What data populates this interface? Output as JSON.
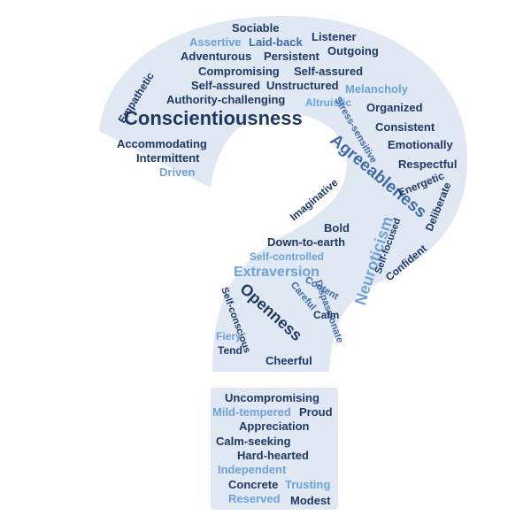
{
  "palette": {
    "background": "#ffffff",
    "shape_fill": "#dfe8f3",
    "dark_blue": "#1f3864",
    "mid_blue": "#3e6aa8",
    "light_blue": "#6fa2d6",
    "faint_blue": "#9fb6d3"
  },
  "words": {
    "sociable": "Sociable",
    "assertive": "Assertive",
    "laid_back": "Laid-back",
    "listener": "Listener",
    "adventurous": "Adventurous",
    "persistent": "Persistent",
    "outgoing": "Outgoing",
    "empathetic": "Empathetic",
    "compromising": "Compromising",
    "self_assured_1": "Self-assured",
    "self_assured_2": "Self-assured",
    "unstructured": "Unstructured",
    "melancholy": "Melancholy",
    "authority_challenging": "Authority-challenging",
    "altruistic": "Altruistic",
    "organized": "Organized",
    "conscientiousness": "Conscientiousness",
    "consistent": "Consistent",
    "stress_sensitive": "Stress-sensitive",
    "emotionally": "Emotionally",
    "accommodating": "Accommodating",
    "agreeableness": "Agreeableness",
    "respectful": "Respectful",
    "intermittent": "Intermittent",
    "driven": "Driven",
    "energetic": "Energetic",
    "deliberate": "Deliberate",
    "imaginative": "Imaginative",
    "bold": "Bold",
    "neuroticism": "Neuroticism",
    "down_to_earth": "Down-to-earth",
    "self_focused": "Self-focused",
    "confident": "Confident",
    "self_controlled": "Self-controlled",
    "extraversion": "Extraversion",
    "careful": "Careful",
    "content": "Content",
    "openness": "Openness",
    "dispassionate": "Dispassionate",
    "self_conscious": "Self-conscious",
    "calm": "Calm",
    "fiery": "Fiery",
    "tend": "Tend",
    "cheerful": "Cheerful",
    "uncompromising": "Uncompromising",
    "mild_tempered": "Mild-tempered",
    "proud": "Proud",
    "appreciation": "Appreciation",
    "calm_seeking": "Calm-seeking",
    "hard_hearted": "Hard-hearted",
    "independent": "Independent",
    "concrete": "Concrete",
    "trusting": "Trusting",
    "reserved": "Reserved",
    "modest": "Modest"
  }
}
